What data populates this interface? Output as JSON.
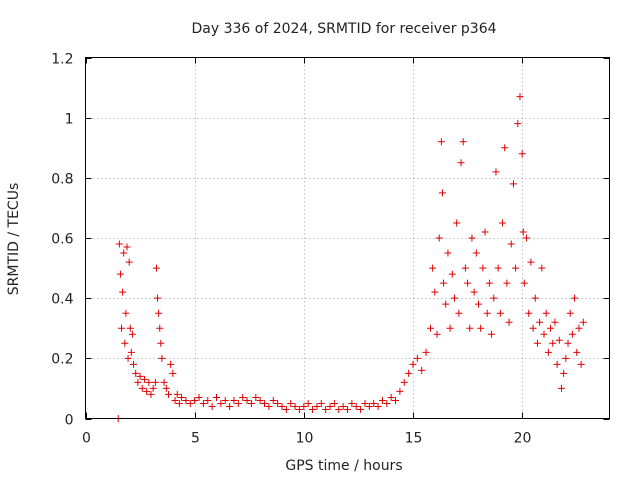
{
  "colors": {
    "series": "#e00000",
    "axis": "#000000",
    "grid": "#a0a0a0",
    "background": "#ffffff"
  },
  "chart_data": {
    "type": "scatter",
    "title": "Day 336 of 2024, SRMTID for receiver p364",
    "xlabel": "GPS time / hours",
    "ylabel": "SRMTID / TECUs",
    "xlim": [
      0,
      24
    ],
    "ylim": [
      0,
      1.2
    ],
    "xticks": [
      0,
      5,
      10,
      15,
      20
    ],
    "xtick_labels": [
      "0",
      "5",
      "10",
      "15",
      "20"
    ],
    "yticks": [
      0,
      0.2,
      0.4,
      0.6,
      0.8,
      1.0,
      1.2
    ],
    "ytick_labels": [
      "0",
      "0.2",
      "0.4",
      "0.6",
      "0.8",
      "1",
      "1.2"
    ],
    "grid": true,
    "marker": "+",
    "series": [
      {
        "name": "p364",
        "points": [
          [
            1.5,
            0.0
          ],
          [
            1.55,
            0.58
          ],
          [
            1.6,
            0.48
          ],
          [
            1.65,
            0.3
          ],
          [
            1.7,
            0.42
          ],
          [
            1.75,
            0.55
          ],
          [
            1.8,
            0.25
          ],
          [
            1.85,
            0.35
          ],
          [
            1.9,
            0.57
          ],
          [
            1.95,
            0.2
          ],
          [
            2.0,
            0.52
          ],
          [
            2.05,
            0.3
          ],
          [
            2.1,
            0.22
          ],
          [
            2.15,
            0.28
          ],
          [
            2.2,
            0.18
          ],
          [
            2.3,
            0.15
          ],
          [
            2.4,
            0.12
          ],
          [
            2.5,
            0.14
          ],
          [
            2.6,
            0.1
          ],
          [
            2.7,
            0.13
          ],
          [
            2.8,
            0.09
          ],
          [
            2.9,
            0.12
          ],
          [
            3.0,
            0.08
          ],
          [
            3.1,
            0.1
          ],
          [
            3.2,
            0.12
          ],
          [
            3.25,
            0.5
          ],
          [
            3.3,
            0.4
          ],
          [
            3.35,
            0.35
          ],
          [
            3.4,
            0.3
          ],
          [
            3.45,
            0.25
          ],
          [
            3.5,
            0.2
          ],
          [
            3.6,
            0.12
          ],
          [
            3.7,
            0.1
          ],
          [
            3.8,
            0.08
          ],
          [
            3.9,
            0.18
          ],
          [
            4.0,
            0.15
          ],
          [
            4.1,
            0.06
          ],
          [
            4.2,
            0.08
          ],
          [
            4.3,
            0.05
          ],
          [
            4.4,
            0.07
          ],
          [
            4.6,
            0.06
          ],
          [
            4.8,
            0.05
          ],
          [
            5.0,
            0.06
          ],
          [
            5.2,
            0.07
          ],
          [
            5.4,
            0.05
          ],
          [
            5.6,
            0.06
          ],
          [
            5.8,
            0.04
          ],
          [
            6.0,
            0.07
          ],
          [
            6.2,
            0.05
          ],
          [
            6.4,
            0.06
          ],
          [
            6.6,
            0.04
          ],
          [
            6.8,
            0.06
          ],
          [
            7.0,
            0.05
          ],
          [
            7.2,
            0.07
          ],
          [
            7.4,
            0.06
          ],
          [
            7.6,
            0.05
          ],
          [
            7.8,
            0.07
          ],
          [
            8.0,
            0.06
          ],
          [
            8.2,
            0.05
          ],
          [
            8.4,
            0.04
          ],
          [
            8.6,
            0.06
          ],
          [
            8.8,
            0.05
          ],
          [
            9.0,
            0.04
          ],
          [
            9.2,
            0.03
          ],
          [
            9.4,
            0.05
          ],
          [
            9.6,
            0.04
          ],
          [
            9.8,
            0.03
          ],
          [
            10.0,
            0.04
          ],
          [
            10.2,
            0.05
          ],
          [
            10.4,
            0.03
          ],
          [
            10.6,
            0.04
          ],
          [
            10.8,
            0.05
          ],
          [
            11.0,
            0.03
          ],
          [
            11.2,
            0.04
          ],
          [
            11.4,
            0.05
          ],
          [
            11.6,
            0.03
          ],
          [
            11.8,
            0.04
          ],
          [
            12.0,
            0.03
          ],
          [
            12.2,
            0.05
          ],
          [
            12.4,
            0.04
          ],
          [
            12.6,
            0.03
          ],
          [
            12.8,
            0.05
          ],
          [
            13.0,
            0.04
          ],
          [
            13.2,
            0.05
          ],
          [
            13.4,
            0.04
          ],
          [
            13.6,
            0.06
          ],
          [
            13.8,
            0.05
          ],
          [
            14.0,
            0.07
          ],
          [
            14.2,
            0.06
          ],
          [
            14.4,
            0.09
          ],
          [
            14.6,
            0.12
          ],
          [
            14.8,
            0.15
          ],
          [
            15.0,
            0.18
          ],
          [
            15.2,
            0.2
          ],
          [
            15.4,
            0.16
          ],
          [
            15.6,
            0.22
          ],
          [
            15.8,
            0.3
          ],
          [
            15.9,
            0.5
          ],
          [
            16.0,
            0.42
          ],
          [
            16.1,
            0.28
          ],
          [
            16.2,
            0.6
          ],
          [
            16.3,
            0.92
          ],
          [
            16.35,
            0.75
          ],
          [
            16.4,
            0.45
          ],
          [
            16.5,
            0.38
          ],
          [
            16.6,
            0.55
          ],
          [
            16.7,
            0.3
          ],
          [
            16.8,
            0.48
          ],
          [
            16.9,
            0.4
          ],
          [
            17.0,
            0.65
          ],
          [
            17.1,
            0.35
          ],
          [
            17.2,
            0.85
          ],
          [
            17.3,
            0.92
          ],
          [
            17.4,
            0.5
          ],
          [
            17.5,
            0.45
          ],
          [
            17.6,
            0.3
          ],
          [
            17.7,
            0.6
          ],
          [
            17.8,
            0.42
          ],
          [
            17.9,
            0.55
          ],
          [
            18.0,
            0.38
          ],
          [
            18.1,
            0.3
          ],
          [
            18.2,
            0.5
          ],
          [
            18.3,
            0.62
          ],
          [
            18.4,
            0.35
          ],
          [
            18.5,
            0.45
          ],
          [
            18.6,
            0.28
          ],
          [
            18.7,
            0.4
          ],
          [
            18.8,
            0.82
          ],
          [
            18.9,
            0.5
          ],
          [
            19.0,
            0.35
          ],
          [
            19.1,
            0.65
          ],
          [
            19.2,
            0.9
          ],
          [
            19.3,
            0.45
          ],
          [
            19.4,
            0.32
          ],
          [
            19.5,
            0.58
          ],
          [
            19.6,
            0.78
          ],
          [
            19.7,
            0.5
          ],
          [
            19.8,
            0.98
          ],
          [
            19.9,
            1.07
          ],
          [
            20.0,
            0.88
          ],
          [
            20.05,
            0.62
          ],
          [
            20.1,
            0.45
          ],
          [
            20.2,
            0.6
          ],
          [
            20.3,
            0.35
          ],
          [
            20.4,
            0.52
          ],
          [
            20.5,
            0.3
          ],
          [
            20.6,
            0.4
          ],
          [
            20.7,
            0.25
          ],
          [
            20.8,
            0.32
          ],
          [
            20.9,
            0.5
          ],
          [
            21.0,
            0.28
          ],
          [
            21.1,
            0.35
          ],
          [
            21.2,
            0.22
          ],
          [
            21.3,
            0.3
          ],
          [
            21.4,
            0.25
          ],
          [
            21.5,
            0.32
          ],
          [
            21.6,
            0.18
          ],
          [
            21.7,
            0.26
          ],
          [
            21.8,
            0.1
          ],
          [
            21.9,
            0.15
          ],
          [
            22.0,
            0.2
          ],
          [
            22.1,
            0.25
          ],
          [
            22.2,
            0.35
          ],
          [
            22.3,
            0.28
          ],
          [
            22.4,
            0.4
          ],
          [
            22.5,
            0.22
          ],
          [
            22.6,
            0.3
          ],
          [
            22.7,
            0.18
          ],
          [
            22.8,
            0.32
          ]
        ]
      }
    ]
  }
}
